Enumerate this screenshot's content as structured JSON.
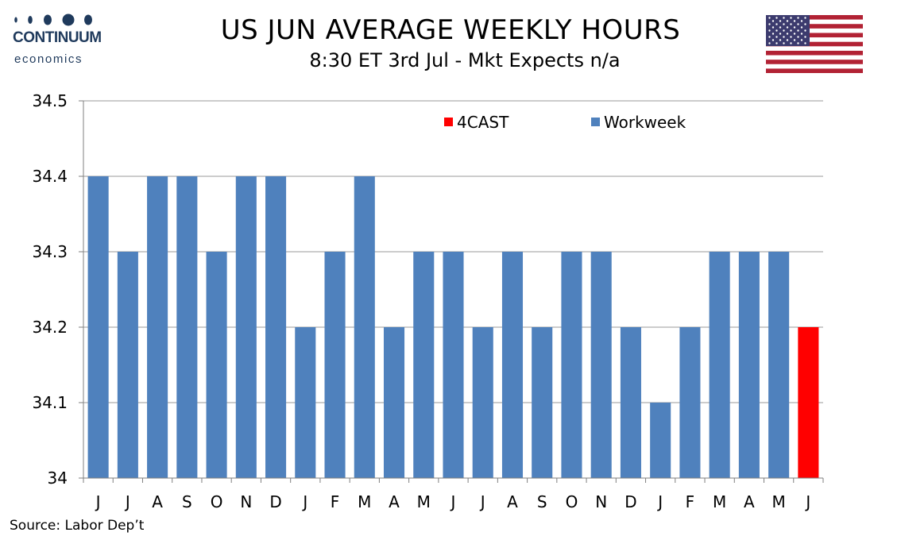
{
  "brand": {
    "name": "CONTINUUM",
    "sub": "economics",
    "icon": "continuum-dots-icon"
  },
  "flag": {
    "icon": "us-flag-icon",
    "colors": {
      "red": "#b22234",
      "white": "#ffffff",
      "blue": "#3c3b6e"
    }
  },
  "source": "Source: Labor Dep’t",
  "chart_data": {
    "type": "bar",
    "title": "US JUN AVERAGE WEEKLY HOURS",
    "subtitle": "8:30 ET 3rd Jul - Mkt Expects n/a",
    "categories": [
      "J",
      "J",
      "A",
      "S",
      "O",
      "N",
      "D",
      "J",
      "F",
      "M",
      "A",
      "M",
      "J",
      "J",
      "A",
      "S",
      "O",
      "N",
      "D",
      "J",
      "F",
      "M",
      "A",
      "M",
      "J"
    ],
    "series": [
      {
        "name": "Workweek",
        "color": "#4f81bd",
        "values": [
          34.4,
          34.3,
          34.4,
          34.4,
          34.3,
          34.4,
          34.4,
          34.2,
          34.3,
          34.4,
          34.2,
          34.3,
          34.3,
          34.2,
          34.3,
          34.2,
          34.3,
          34.3,
          34.2,
          34.1,
          34.2,
          34.3,
          34.3,
          34.3,
          null
        ]
      },
      {
        "name": "4CAST",
        "color": "#ff0000",
        "values": [
          null,
          null,
          null,
          null,
          null,
          null,
          null,
          null,
          null,
          null,
          null,
          null,
          null,
          null,
          null,
          null,
          null,
          null,
          null,
          null,
          null,
          null,
          null,
          null,
          34.2
        ]
      }
    ],
    "legend_order": [
      "4CAST",
      "Workweek"
    ],
    "yticks": [
      "34",
      "34.1",
      "34.2",
      "34.3",
      "34.4",
      "34.5"
    ],
    "ylim": [
      34,
      34.5
    ],
    "grid": true,
    "legend_position": "top-right"
  }
}
